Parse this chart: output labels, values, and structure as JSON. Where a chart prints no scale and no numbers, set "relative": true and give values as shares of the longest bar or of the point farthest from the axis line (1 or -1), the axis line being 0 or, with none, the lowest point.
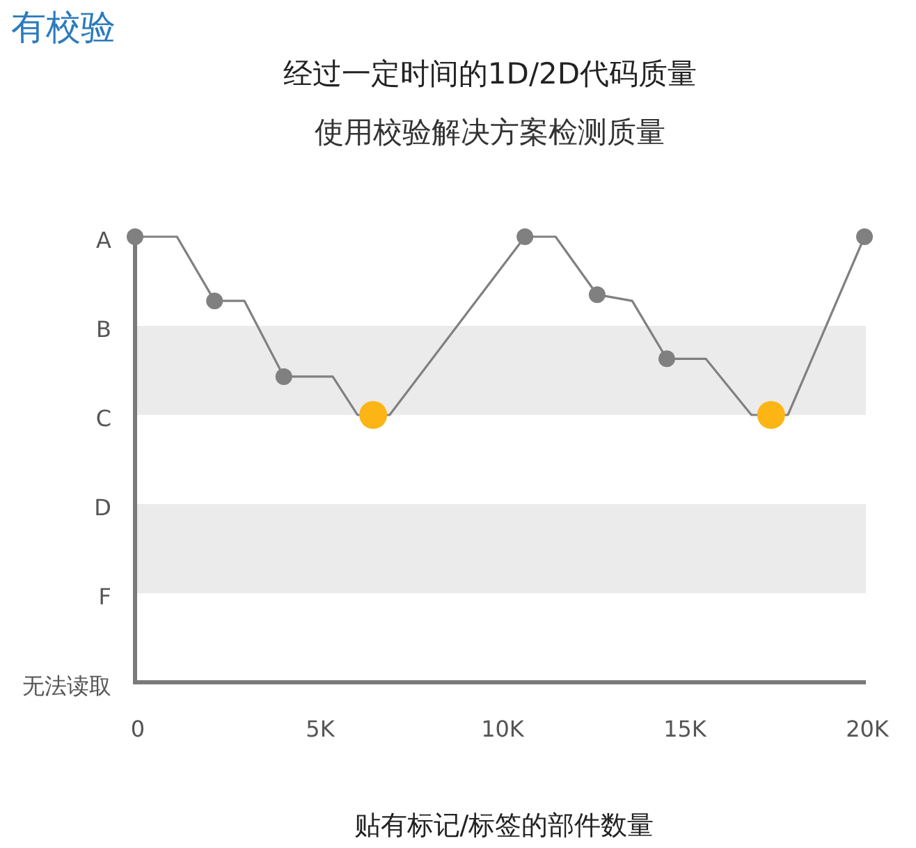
{
  "chart_data": {
    "type": "line",
    "title": "有校验",
    "subtitle": "经过一定时间的1D/2D代码质量",
    "annotations": [
      "使用校验解决方案检测质量"
    ],
    "xlabel": "贴有标记/标签的部件数量",
    "xlim": [
      0,
      20000
    ],
    "xticks": [
      0,
      {
        "value": 5000,
        "label": "5K"
      },
      {
        "value": 10000,
        "label": "10K"
      },
      {
        "value": 15000,
        "label": "15K"
      },
      {
        "value": 20000,
        "label": "20K"
      }
    ],
    "relative": true,
    "y_categories": [
      "A",
      "B",
      "C",
      "D",
      "F",
      "无法读取"
    ],
    "grid": false,
    "legend": false,
    "bands": [
      {
        "axis": "y",
        "from": 0.6,
        "to": 0.8,
        "color": "#ebebeb"
      },
      {
        "axis": "y",
        "from": 0.2,
        "to": 0.4,
        "color": "#ebebeb"
      }
    ],
    "series": [
      {
        "type": "line",
        "marker": "none",
        "color": "#808080",
        "x": [
          0,
          1150,
          2180,
          3000,
          4080,
          5420,
          6100,
          6980,
          10690,
          11530,
          12670,
          13630,
          14580,
          15650,
          16900,
          17900,
          20000
        ],
        "values": [
          1,
          1,
          0.856,
          0.856,
          0.686,
          0.686,
          0.6,
          0.6,
          1,
          1,
          0.87,
          0.856,
          0.726,
          0.726,
          0.6,
          0.6,
          1
        ]
      },
      {
        "type": "scatter",
        "marker": "circle",
        "color": "#808080",
        "x": [
          0,
          2180,
          4080,
          10690,
          12670,
          14580,
          20000
        ],
        "values": [
          1,
          0.856,
          0.686,
          1,
          0.87,
          0.726,
          1
        ]
      },
      {
        "type": "scatter",
        "marker": "circle",
        "color": "#fdb515",
        "x": [
          6530,
          17440
        ],
        "values": [
          0.6,
          0.6
        ]
      }
    ]
  }
}
